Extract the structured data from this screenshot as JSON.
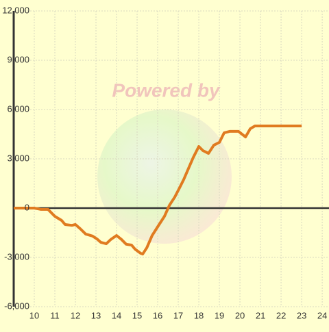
{
  "chart_data": {
    "type": "line",
    "watermark": "Powered by",
    "x": [
      9,
      10,
      10.33,
      10.67,
      11,
      11.33,
      11.5,
      11.83,
      12,
      12.23,
      12.5,
      12.83,
      13.07,
      13.23,
      13.5,
      13.73,
      14,
      14.23,
      14.47,
      14.73,
      14.9,
      15.17,
      15.27,
      15.47,
      15.73,
      16.07,
      16.33,
      16.57,
      16.83,
      17.07,
      17.27,
      17.5,
      17.73,
      18,
      18.2,
      18.47,
      18.73,
      19,
      19.23,
      19.5,
      19.93,
      20.27,
      20.5,
      20.73,
      23
    ],
    "series": [
      {
        "color": "#e07b20",
        "values": [
          0,
          0,
          -80,
          -80,
          -500,
          -750,
          -1000,
          -1050,
          -1000,
          -1250,
          -1580,
          -1700,
          -1900,
          -2080,
          -2170,
          -1900,
          -1670,
          -1900,
          -2200,
          -2250,
          -2500,
          -2750,
          -2800,
          -2420,
          -1670,
          -1000,
          -500,
          170,
          670,
          1250,
          1750,
          2420,
          3080,
          3750,
          3500,
          3330,
          3830,
          4000,
          4580,
          4670,
          4670,
          4330,
          4830,
          5000,
          5000
        ]
      }
    ],
    "xlim": [
      9,
      24.33
    ],
    "xticks": [
      10,
      11,
      12,
      13,
      14,
      15,
      16,
      17,
      18,
      19,
      20,
      21,
      22,
      23,
      24
    ],
    "ylim": [
      -6000,
      12000
    ],
    "yticks": [
      {
        "value": -6000,
        "label": "-6,000"
      },
      {
        "value": -3000,
        "label": "-3,000"
      },
      0,
      {
        "value": 3000,
        "label": "3,000"
      },
      {
        "value": 6000,
        "label": "6,000"
      },
      {
        "value": 9000,
        "label": "9,000"
      },
      {
        "value": 12000,
        "label": "12,000"
      }
    ],
    "grid": true
  }
}
